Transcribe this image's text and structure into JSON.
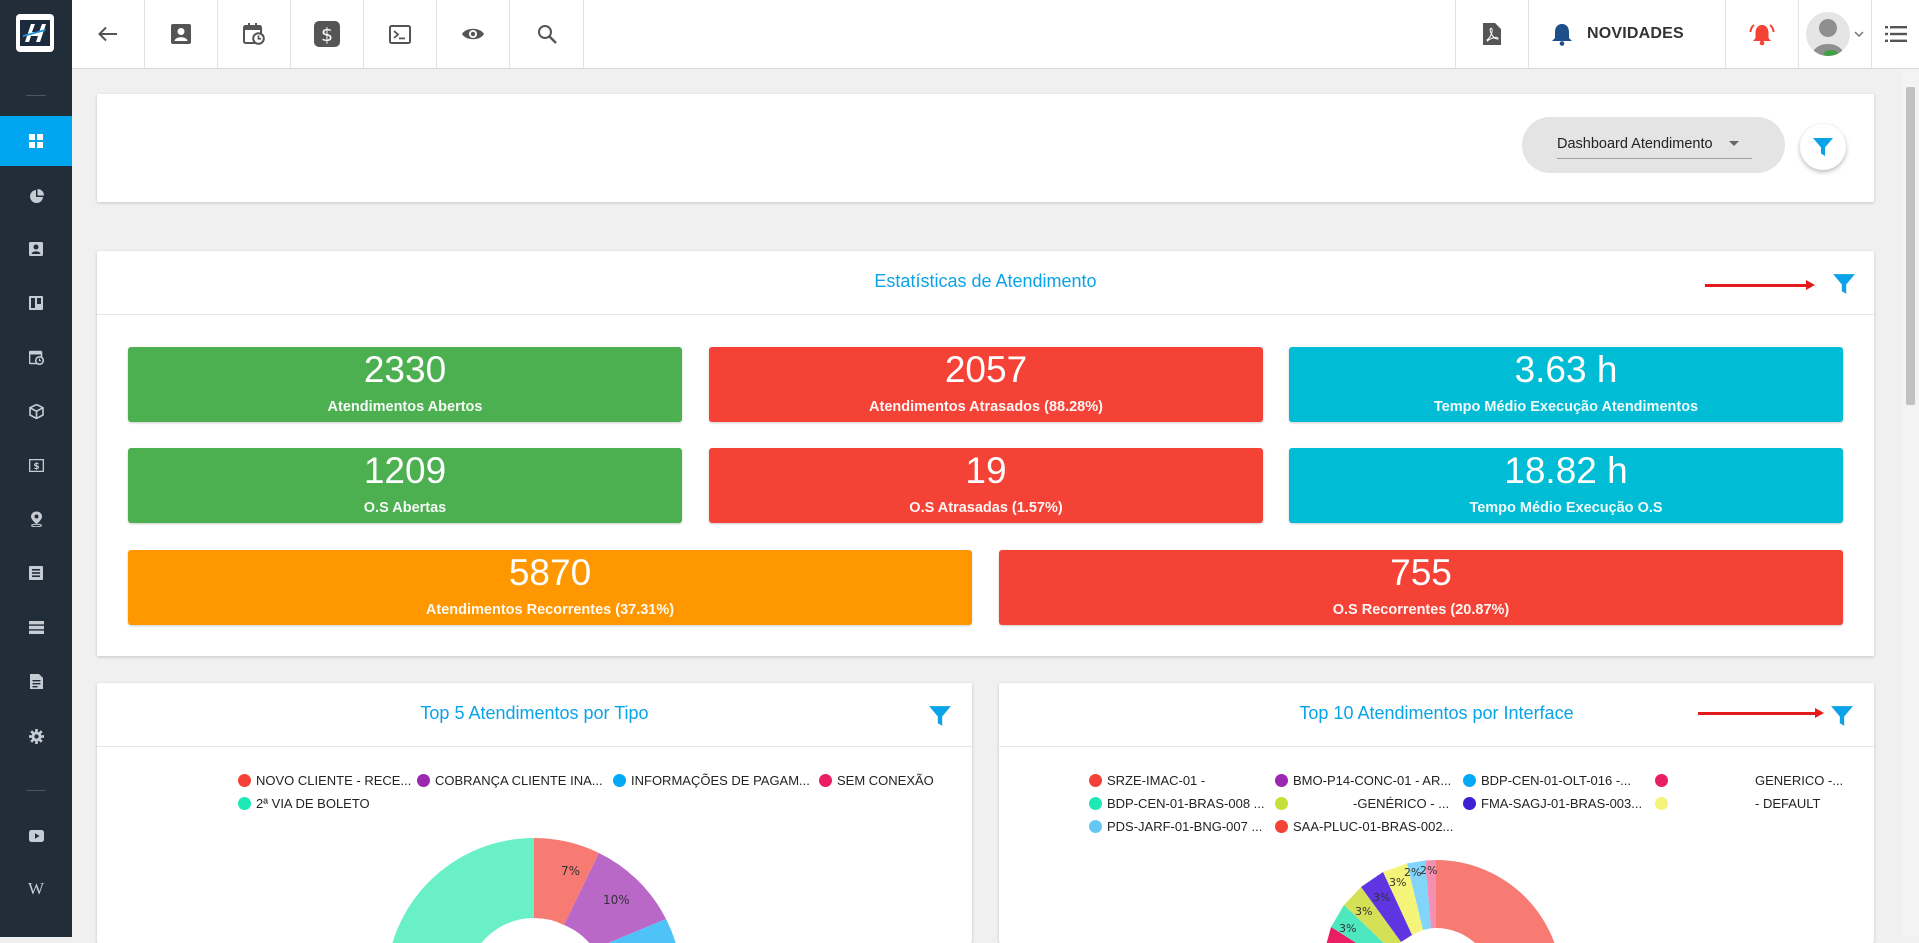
{
  "topbar": {
    "novidades_label": "NOVIDADES",
    "icons": [
      "back-arrow-icon",
      "contact-card-icon",
      "calendar-clock-icon",
      "dollar-icon",
      "terminal-icon",
      "eye-icon",
      "search-icon",
      "pdf-icon",
      "bell-icon",
      "alarm-icon",
      "user-avatar",
      "menu-list-icon"
    ]
  },
  "dashboard_select": {
    "value": "Dashboard Atendimento"
  },
  "stats_card": {
    "title": "Estatísticas de Atendimento",
    "tiles": [
      {
        "value": "2330",
        "label": "Atendimentos Abertos",
        "color": "#4caf50"
      },
      {
        "value": "2057",
        "label": "Atendimentos Atrasados (88.28%)",
        "color": "#f44336"
      },
      {
        "value": "3.63 h",
        "label": "Tempo Médio Execução Atendimentos",
        "color": "#00bcd4"
      },
      {
        "value": "1209",
        "label": "O.S Abertas",
        "color": "#4caf50"
      },
      {
        "value": "19",
        "label": "O.S Atrasadas (1.57%)",
        "color": "#f44336"
      },
      {
        "value": "18.82 h",
        "label": "Tempo Médio Execução O.S",
        "color": "#00bcd4"
      },
      {
        "value": "5870",
        "label": "Atendimentos Recorrentes (37.31%)",
        "color": "#ff9800"
      },
      {
        "value": "755",
        "label": "O.S Recorrentes (20.87%)",
        "color": "#f44336"
      }
    ]
  },
  "chart_tipo": {
    "title": "Top 5 Atendimentos por Tipo",
    "legend": [
      {
        "label": "NOVO CLIENTE - RECE...",
        "color": "#f44336"
      },
      {
        "label": "COBRANÇA CLIENTE INA...",
        "color": "#9c27b0"
      },
      {
        "label": "INFORMAÇÕES DE PAGAM...",
        "color": "#03a9f4"
      },
      {
        "label": "SEM CONEXÃO",
        "color": "#e91e63"
      },
      {
        "label": "2ª VIA DE BOLETO",
        "color": "#1de9b6"
      }
    ],
    "slice_labels": [
      "7%",
      "10%"
    ]
  },
  "chart_interface": {
    "title": "Top 10 Atendimentos por Interface",
    "legend": [
      {
        "label": "SRZE-IMAC-01 -",
        "color": "#f44336"
      },
      {
        "label": "BMO-P14-CONC-01 - AR...",
        "color": "#9c27b0"
      },
      {
        "label": "BDP-CEN-01-OLT-016 -...",
        "color": "#03a9f4"
      },
      {
        "label": "GENERICO -...",
        "color": "#e91e63"
      },
      {
        "label": "BDP-CEN-01-BRAS-008 ...",
        "color": "#1de9b6"
      },
      {
        "label": "-GENÉRICO - ...",
        "color": "#c6e03a"
      },
      {
        "label": "FMA-SAGJ-01-BRAS-003...",
        "color": "#3f1fd6"
      },
      {
        "label": "- DEFAULT",
        "color": "#f4f47a"
      },
      {
        "label": "PDS-JARF-01-BNG-007 ...",
        "color": "#64c8f5"
      },
      {
        "label": "SAA-PLUC-01-BRAS-002...",
        "color": "#f44336"
      }
    ],
    "slice_labels": [
      "3%",
      "3%",
      "3%",
      "3%",
      "2%",
      "2%"
    ]
  }
}
